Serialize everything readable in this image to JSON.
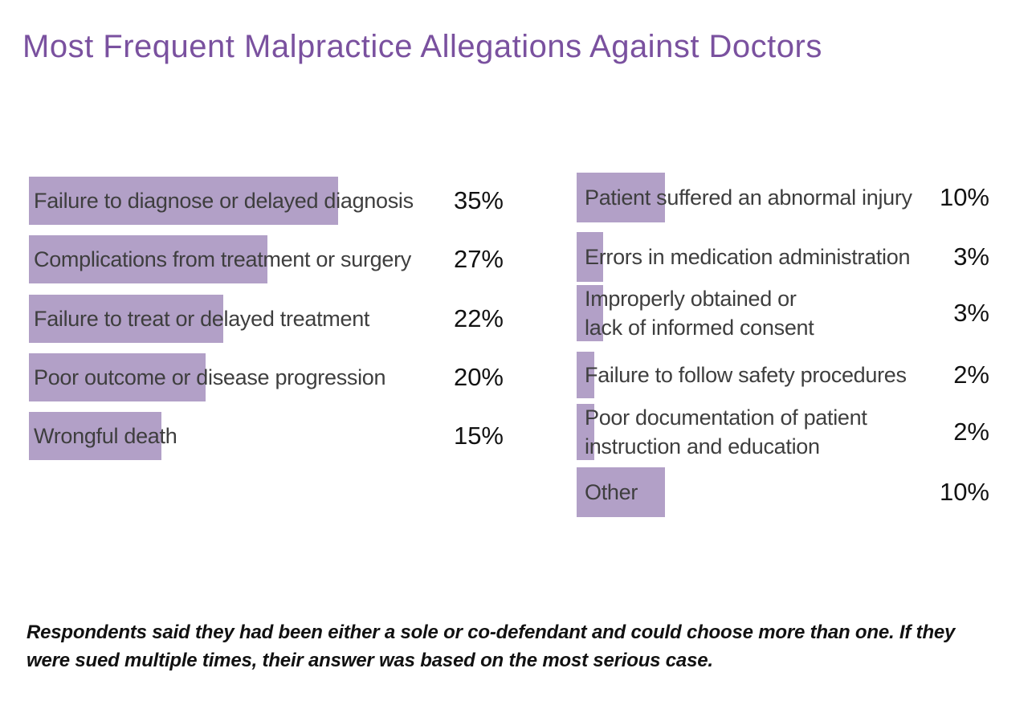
{
  "title": "Most Frequent Malpractice Allegations Against Doctors",
  "colors": {
    "title": "#7a519f",
    "bar": "#b2a0c7",
    "label": "#3e3e3e",
    "value": "#121212",
    "footnote": "#111111"
  },
  "chart_data": {
    "type": "bar",
    "orientation": "horizontal",
    "title": "Most Frequent Malpractice Allegations Against Doctors",
    "unit": "%",
    "value_range": [
      0,
      35
    ],
    "grid": false,
    "legend": false,
    "bar_color": "#b2a0c7",
    "columns": [
      {
        "name": "left",
        "items": [
          {
            "lines": [
              "Failure to diagnose or delayed diagnosis"
            ],
            "value": 35,
            "display": "35%"
          },
          {
            "lines": [
              "Complications from treatment or surgery"
            ],
            "value": 27,
            "display": "27%"
          },
          {
            "lines": [
              "Failure to treat or delayed treatment"
            ],
            "value": 22,
            "display": "22%"
          },
          {
            "lines": [
              "Poor outcome or disease progression"
            ],
            "value": 20,
            "display": "20%"
          },
          {
            "lines": [
              "Wrongful death"
            ],
            "value": 15,
            "display": "15%"
          }
        ]
      },
      {
        "name": "right",
        "items": [
          {
            "lines": [
              "Patient suffered an abnormal injury"
            ],
            "value": 10,
            "display": "10%"
          },
          {
            "lines": [
              "Errors in medication administration"
            ],
            "value": 3,
            "display": "3%"
          },
          {
            "lines": [
              "Improperly obtained or",
              "lack of informed consent"
            ],
            "value": 3,
            "display": "3%"
          },
          {
            "lines": [
              "Failure to follow safety procedures"
            ],
            "value": 2,
            "display": "2%"
          },
          {
            "lines": [
              "Poor documentation of patient",
              "instruction and education"
            ],
            "value": 2,
            "display": "2%"
          },
          {
            "lines": [
              "Other"
            ],
            "value": 10,
            "display": "10%"
          }
        ]
      }
    ],
    "footnote": "Respondents said they had been either a sole or co-defendant and could choose more than one. If they were sued multiple times, their answer was based on the most serious case."
  },
  "footnote": "Respondents said they had been either a sole or co-defendant and could choose more than one. If they were sued multiple times, their answer was based on the most serious case."
}
